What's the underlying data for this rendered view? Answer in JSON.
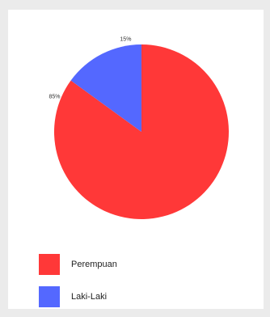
{
  "chart_data": {
    "type": "pie",
    "slices": [
      {
        "label": "Perempuan",
        "value": 85,
        "value_label": "85%",
        "color": "#ff3838"
      },
      {
        "label": "Laki-Laki",
        "value": 15,
        "value_label": "15%",
        "color": "#5468ff"
      }
    ],
    "legend_position": "bottom-left"
  }
}
